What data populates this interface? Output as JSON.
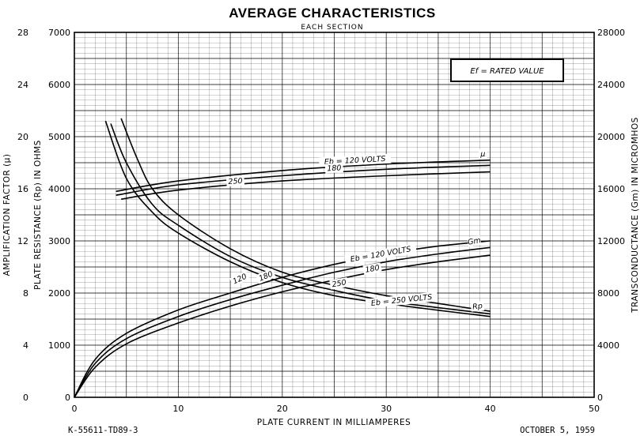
{
  "chart_data": {
    "type": "line",
    "title": "AVERAGE CHARACTERISTICS",
    "subtitle": "EACH SECTION",
    "note": "Ef = RATED VALUE",
    "xlabel": "PLATE CURRENT IN MILLIAMPERES",
    "ylabel_left_outer": "AMPLIFICATION FACTOR (μ)",
    "ylabel_left_inner": "PLATE RESISTANCE (Rp) IN OHMS",
    "ylabel_right": "TRANSCONDUCTANCE (Gm) IN MICROMHOS",
    "xlim": [
      0,
      50
    ],
    "xticks": [
      "0",
      "10",
      "20",
      "30",
      "40",
      "50"
    ],
    "ylim_mu": [
      0,
      28
    ],
    "mu_ticks": [
      "0",
      "4",
      "8",
      "12",
      "16",
      "20",
      "24",
      "28"
    ],
    "ylim_rp": [
      0,
      7000
    ],
    "rp_ticks": [
      "0",
      "1000",
      "2000",
      "3000",
      "4000",
      "5000",
      "6000",
      "7000"
    ],
    "ylim_gm": [
      0,
      28000
    ],
    "gm_ticks": [
      "0",
      "4000",
      "8000",
      "12000",
      "16000",
      "20000",
      "24000",
      "28000"
    ],
    "grid": true,
    "footer_left": "K-55611-TD89-3",
    "footer_right": "OCTOBER 5, 1959",
    "series": [
      {
        "name": "Eb = 120 VOLTS",
        "group": "mu",
        "axis": "mu",
        "x": [
          4,
          10,
          20,
          30,
          40
        ],
        "y": [
          15.8,
          16.6,
          17.4,
          17.9,
          18.2
        ]
      },
      {
        "name": "180",
        "group": "mu",
        "axis": "mu",
        "x": [
          4,
          10,
          20,
          30,
          40
        ],
        "y": [
          15.5,
          16.3,
          17.0,
          17.5,
          17.8
        ]
      },
      {
        "name": "250",
        "group": "mu",
        "axis": "mu",
        "x": [
          4.5,
          10,
          20,
          30,
          40
        ],
        "y": [
          15.2,
          15.9,
          16.6,
          17.0,
          17.3
        ]
      },
      {
        "name": "Eb = 120 VOLTS",
        "group": "gm",
        "axis": "gm",
        "x": [
          0,
          2,
          5,
          10,
          15,
          20,
          25,
          30,
          35,
          40
        ],
        "y": [
          0,
          2900,
          4900,
          6700,
          8000,
          9200,
          10200,
          11000,
          11600,
          12000
        ]
      },
      {
        "name": "180",
        "group": "gm",
        "axis": "gm",
        "x": [
          0,
          2,
          5,
          10,
          15,
          20,
          25,
          30,
          35,
          40
        ],
        "y": [
          0,
          2600,
          4500,
          6200,
          7500,
          8600,
          9600,
          10400,
          11000,
          11500
        ]
      },
      {
        "name": "Eb = 250 VOLTS",
        "group": "gm",
        "axis": "gm",
        "x": [
          0,
          2,
          5,
          10,
          15,
          20,
          25,
          30,
          35,
          40
        ],
        "y": [
          0,
          2300,
          4100,
          5700,
          7000,
          8100,
          9000,
          9800,
          10400,
          10900
        ]
      },
      {
        "name": "120",
        "group": "rp",
        "axis": "rp",
        "x": [
          3,
          5,
          7.5,
          10,
          15,
          20,
          25,
          30,
          35,
          40
        ],
        "y": [
          5300,
          4200,
          3550,
          3150,
          2600,
          2200,
          1950,
          1800,
          1670,
          1550
        ]
      },
      {
        "name": "180",
        "group": "rp",
        "axis": "rp",
        "x": [
          3.5,
          5,
          7.5,
          10,
          15,
          20,
          25,
          30,
          35,
          40
        ],
        "y": [
          5250,
          4500,
          3700,
          3300,
          2700,
          2300,
          2050,
          1850,
          1720,
          1600
        ]
      },
      {
        "name": "250",
        "group": "rp",
        "axis": "rp",
        "x": [
          4.5,
          6,
          7.5,
          10,
          15,
          20,
          25,
          30,
          35,
          40
        ],
        "y": [
          5350,
          4600,
          4000,
          3500,
          2850,
          2400,
          2150,
          1950,
          1800,
          1650
        ]
      }
    ],
    "annotations": [
      {
        "text": "Eb = 120 VOLTS",
        "x": 27,
        "axis": "rp",
        "y": 4500,
        "rot": -3
      },
      {
        "text": "180",
        "x": 25,
        "axis": "rp",
        "y": 4350,
        "rot": -3
      },
      {
        "text": "250",
        "x": 15.5,
        "axis": "rp",
        "y": 4100,
        "rot": -4
      },
      {
        "text": "μ",
        "x": 39.3,
        "axis": "rp",
        "y": 4620,
        "rot": 0
      },
      {
        "text": "Eb = 120 VOLTS",
        "x": 29.5,
        "axis": "rp",
        "y": 2700,
        "rot": -10
      },
      {
        "text": "180",
        "x": 28.7,
        "axis": "rp",
        "y": 2420,
        "rot": -10
      },
      {
        "text": "250",
        "x": 25.5,
        "axis": "rp",
        "y": 2140,
        "rot": -10
      },
      {
        "text": "Gm",
        "x": 38.5,
        "axis": "rp",
        "y": 2950,
        "rot": -10
      },
      {
        "text": "Eb = 250 VOLTS",
        "x": 31.5,
        "axis": "rp",
        "y": 1820,
        "rot": -6
      },
      {
        "text": "Rp",
        "x": 38.8,
        "axis": "rp",
        "y": 1700,
        "rot": -6
      },
      {
        "text": "180",
        "x": 18.5,
        "axis": "rp",
        "y": 2280,
        "rot": -22
      },
      {
        "text": "120",
        "x": 16,
        "axis": "rp",
        "y": 2230,
        "rot": -25
      }
    ]
  }
}
